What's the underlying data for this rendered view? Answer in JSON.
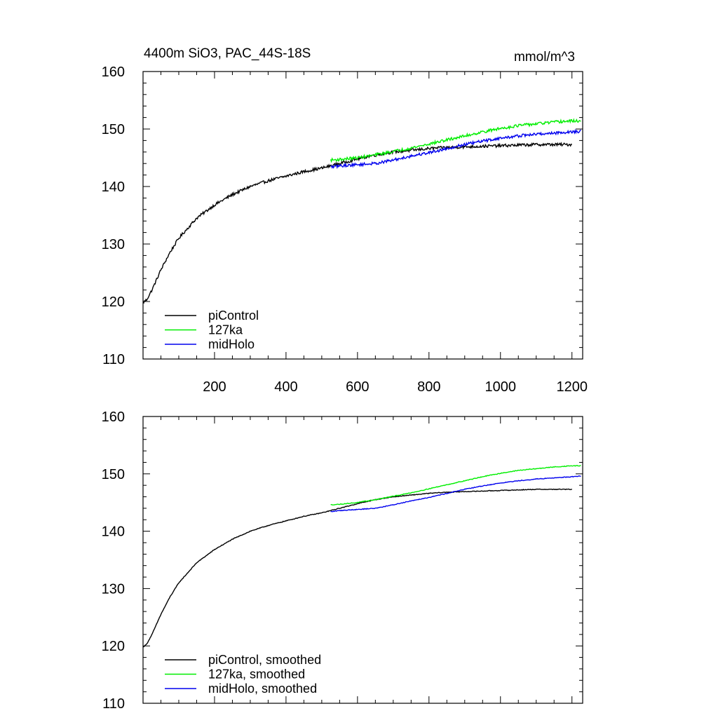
{
  "chart_data": [
    {
      "type": "line",
      "title_left": "4400m SiO3, PAC_44S-18S",
      "title_right": "mmol/m^3",
      "xlim": [
        0,
        1230
      ],
      "ylim": [
        110,
        160
      ],
      "xticks": [
        200,
        400,
        600,
        800,
        1000,
        1200
      ],
      "xtick_labels": [
        "200",
        "400",
        "600",
        "800",
        "1000",
        "1200"
      ],
      "yticks": [
        110,
        120,
        130,
        140,
        150,
        160
      ],
      "ytick_labels": [
        "110",
        "120",
        "130",
        "140",
        "150",
        "160"
      ],
      "legend_position": "bottom-left",
      "series": [
        {
          "name": "piControl",
          "color": "#000000",
          "x": [
            0,
            10,
            25,
            50,
            75,
            100,
            150,
            200,
            250,
            300,
            350,
            400,
            450,
            500,
            525,
            550,
            600,
            650,
            700,
            750,
            800,
            850,
            900,
            950,
            1000,
            1050,
            1100,
            1150,
            1200
          ],
          "y": [
            119.8,
            120.3,
            122.0,
            125.5,
            128.5,
            131.0,
            134.5,
            136.8,
            138.6,
            140.0,
            141.0,
            141.8,
            142.6,
            143.2,
            143.6,
            144.0,
            144.8,
            145.5,
            146.0,
            146.3,
            146.6,
            146.8,
            146.9,
            147.0,
            147.1,
            147.2,
            147.3,
            147.3,
            147.3
          ]
        },
        {
          "name": "127ka",
          "color": "#00ee00",
          "x": [
            525,
            550,
            600,
            650,
            700,
            750,
            800,
            850,
            900,
            950,
            1000,
            1050,
            1100,
            1150,
            1200,
            1225
          ],
          "y": [
            144.6,
            144.7,
            145.0,
            145.5,
            146.1,
            146.7,
            147.4,
            148.1,
            148.8,
            149.5,
            150.1,
            150.6,
            150.9,
            151.2,
            151.4,
            151.4
          ]
        },
        {
          "name": "midHolo",
          "color": "#0000ee",
          "x": [
            525,
            550,
            600,
            650,
            700,
            750,
            800,
            850,
            900,
            950,
            1000,
            1050,
            1100,
            1150,
            1200,
            1225
          ],
          "y": [
            143.4,
            143.6,
            143.8,
            144.0,
            144.6,
            145.3,
            145.9,
            146.6,
            147.3,
            147.9,
            148.4,
            148.8,
            149.1,
            149.3,
            149.5,
            149.6
          ]
        }
      ],
      "noise": 0.25
    },
    {
      "type": "line",
      "title_left": "",
      "title_right": "",
      "xlim": [
        0,
        1230
      ],
      "ylim": [
        110,
        160
      ],
      "xticks": [
        200,
        400,
        600,
        800,
        1000,
        1200
      ],
      "xtick_labels": [],
      "yticks": [
        110,
        120,
        130,
        140,
        150,
        160
      ],
      "ytick_labels": [
        "110",
        "120",
        "130",
        "140",
        "150",
        "160"
      ],
      "legend_position": "bottom-left",
      "series": [
        {
          "name": "piControl, smoothed",
          "color": "#000000",
          "x": [
            0,
            10,
            25,
            50,
            75,
            100,
            150,
            200,
            250,
            300,
            350,
            400,
            450,
            500,
            525,
            550,
            600,
            650,
            700,
            750,
            800,
            850,
            900,
            950,
            1000,
            1050,
            1100,
            1150,
            1200
          ],
          "y": [
            119.8,
            120.3,
            122.0,
            125.5,
            128.5,
            131.0,
            134.5,
            136.8,
            138.6,
            140.0,
            141.0,
            141.8,
            142.6,
            143.2,
            143.6,
            144.0,
            144.8,
            145.5,
            146.0,
            146.3,
            146.6,
            146.8,
            146.9,
            147.0,
            147.1,
            147.2,
            147.3,
            147.3,
            147.3
          ]
        },
        {
          "name": "127ka, smoothed",
          "color": "#00ee00",
          "x": [
            525,
            550,
            600,
            650,
            700,
            750,
            800,
            850,
            900,
            950,
            1000,
            1050,
            1100,
            1150,
            1200,
            1225
          ],
          "y": [
            144.6,
            144.7,
            145.0,
            145.5,
            146.1,
            146.7,
            147.4,
            148.1,
            148.8,
            149.5,
            150.1,
            150.6,
            150.9,
            151.2,
            151.4,
            151.4
          ]
        },
        {
          "name": "midHolo, smoothed",
          "color": "#0000ee",
          "x": [
            525,
            550,
            600,
            650,
            700,
            750,
            800,
            850,
            900,
            950,
            1000,
            1050,
            1100,
            1150,
            1200,
            1225
          ],
          "y": [
            143.4,
            143.6,
            143.8,
            144.0,
            144.6,
            145.3,
            145.9,
            146.6,
            147.3,
            147.9,
            148.4,
            148.8,
            149.1,
            149.3,
            149.5,
            149.6
          ]
        }
      ],
      "noise": 0.06
    }
  ]
}
